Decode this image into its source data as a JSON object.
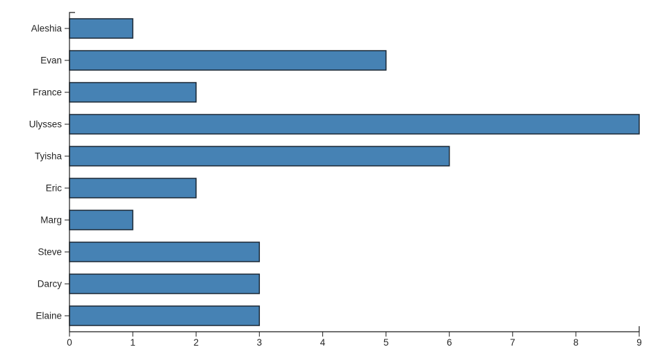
{
  "chart_data": {
    "type": "bar",
    "orientation": "horizontal",
    "title": "",
    "xlabel": "",
    "ylabel": "",
    "categories": [
      "Aleshia",
      "Evan",
      "France",
      "Ulysses",
      "Tyisha",
      "Eric",
      "Marg",
      "Steve",
      "Darcy",
      "Elaine"
    ],
    "values": [
      1,
      5,
      2,
      9,
      6,
      2,
      1,
      3,
      3,
      3
    ],
    "xlim": [
      0,
      9
    ],
    "xticks": [
      0,
      1,
      2,
      3,
      4,
      5,
      6,
      7,
      8,
      9
    ],
    "grid": false,
    "legend": null,
    "bar_color": "#4682B4",
    "bar_edge_color": "#1a2734",
    "axis_color": "#1a1a1a",
    "label_color": "#262626"
  }
}
